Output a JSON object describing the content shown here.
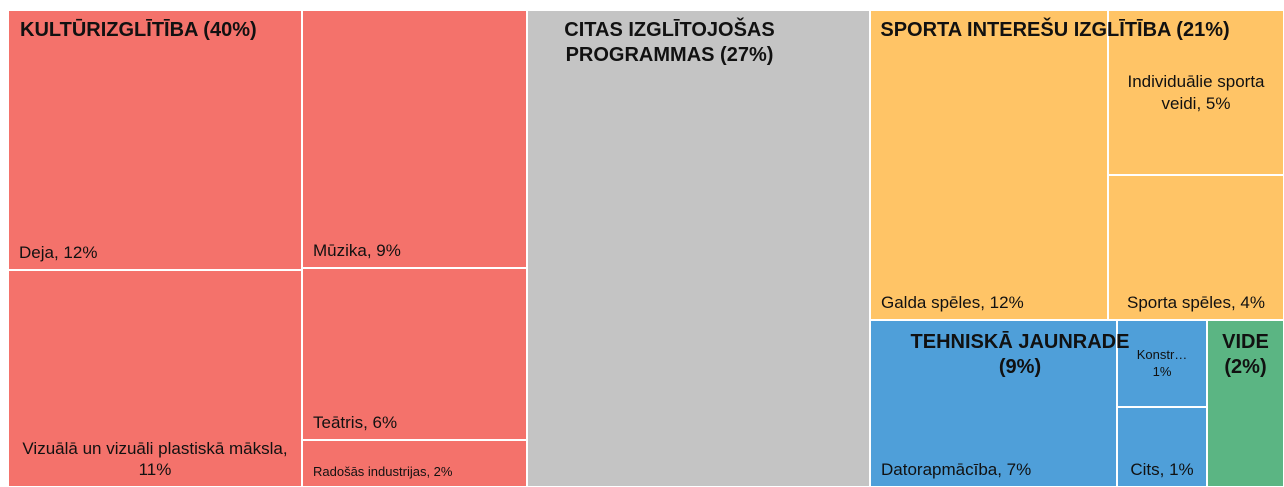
{
  "chart_data": {
    "type": "treemap",
    "groups": [
      {
        "label": "KULTŪRIZGLĪTĪBA (40%)",
        "value": 40,
        "color": "#f4726b",
        "children": [
          {
            "label": "Deja, 12%",
            "value": 12
          },
          {
            "label": "Vizuālā un vizuāli plastiskā māksla, 11%",
            "value": 11
          },
          {
            "label": "Mūzika, 9%",
            "value": 9
          },
          {
            "label": "Teātris, 6%",
            "value": 6
          },
          {
            "label": "Radošās industrijas, 2%",
            "value": 2
          }
        ]
      },
      {
        "label": "CITAS IZGLĪTOJOŠAS PROGRAMMAS (27%)",
        "value": 27,
        "color": "#c4c4c4",
        "children": []
      },
      {
        "label": "SPORTA INTEREŠU IZGLĪTĪBA (21%)",
        "value": 21,
        "color": "#ffc466",
        "children": [
          {
            "label": "Galda spēles, 12%",
            "value": 12
          },
          {
            "label": "Individuālie sporta veidi, 5%",
            "value": 5
          },
          {
            "label": "Sporta spēles, 4%",
            "value": 4
          }
        ]
      },
      {
        "label": "TEHNISKĀ JAUNRADE (9%)",
        "value": 9,
        "color": "#4f9fd9",
        "children": [
          {
            "label": "Datorapmācība, 7%",
            "value": 7
          },
          {
            "label": "Konstr… 1%",
            "value": 1
          },
          {
            "label": "Cits, 1%",
            "value": 1
          }
        ]
      },
      {
        "label": "VIDE (2%)",
        "value": 2,
        "color": "#5bb583",
        "children": []
      }
    ]
  }
}
